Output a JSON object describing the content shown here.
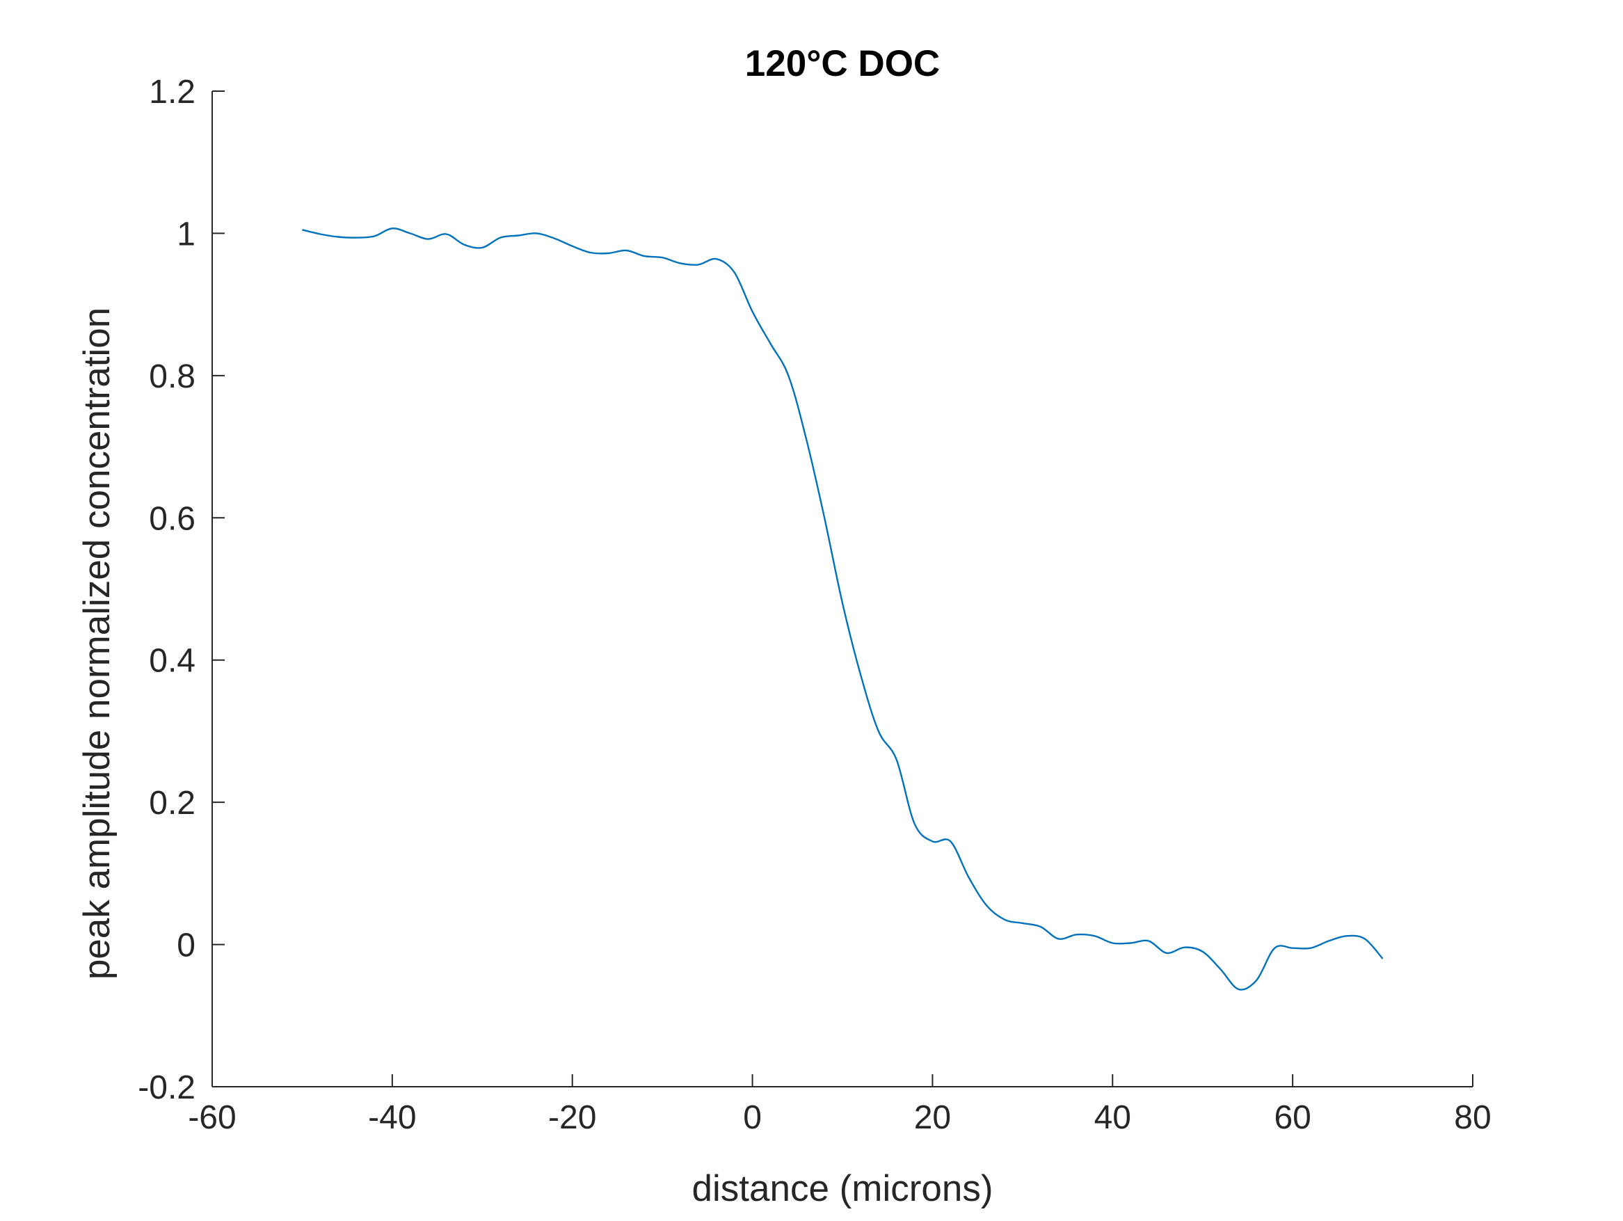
{
  "chart_data": {
    "type": "line",
    "title": "120°C DOC",
    "xlabel": "distance (microns)",
    "ylabel": "peak amplitude normalized concentration",
    "xlim": [
      -60,
      80
    ],
    "ylim": [
      -0.2,
      1.2
    ],
    "x_ticks": [
      -60,
      -40,
      -20,
      0,
      20,
      40,
      60,
      80
    ],
    "x_tick_labels": [
      "-60",
      "-40",
      "-20",
      "0",
      "20",
      "40",
      "60",
      "80"
    ],
    "y_ticks": [
      -0.2,
      0,
      0.2,
      0.4,
      0.6,
      0.8,
      1,
      1.2
    ],
    "y_tick_labels": [
      "-0.2",
      "0",
      "0.2",
      "0.4",
      "0.6",
      "0.8",
      "1",
      "1.2"
    ],
    "grid": false,
    "line_color": "#0072BD",
    "series": [
      {
        "x": [
          -50,
          -48,
          -46,
          -44,
          -42,
          -40,
          -38,
          -36,
          -34,
          -32,
          -30,
          -28,
          -26,
          -24,
          -22,
          -20,
          -18,
          -16,
          -14,
          -12,
          -10,
          -8,
          -6,
          -4,
          -2,
          0,
          2,
          4,
          6,
          8,
          10,
          12,
          14,
          16,
          18,
          20,
          22,
          24,
          26,
          28,
          30,
          32,
          34,
          36,
          38,
          40,
          42,
          44,
          46,
          48,
          50,
          52,
          54,
          56,
          58,
          60,
          62,
          64,
          66,
          68,
          70
        ],
        "y": [
          1.005,
          0.999,
          0.995,
          0.994,
          0.996,
          1.007,
          1.0,
          0.992,
          0.999,
          0.984,
          0.98,
          0.994,
          0.997,
          1.0,
          0.993,
          0.982,
          0.973,
          0.972,
          0.976,
          0.968,
          0.966,
          0.958,
          0.956,
          0.964,
          0.945,
          0.89,
          0.845,
          0.8,
          0.71,
          0.6,
          0.48,
          0.38,
          0.3,
          0.26,
          0.17,
          0.145,
          0.145,
          0.095,
          0.055,
          0.035,
          0.03,
          0.025,
          0.008,
          0.014,
          0.012,
          0.002,
          0.002,
          0.005,
          -0.012,
          -0.004,
          -0.01,
          -0.035,
          -0.063,
          -0.05,
          -0.005,
          -0.005,
          -0.005,
          0.005,
          0.012,
          0.008,
          -0.02
        ]
      }
    ]
  }
}
